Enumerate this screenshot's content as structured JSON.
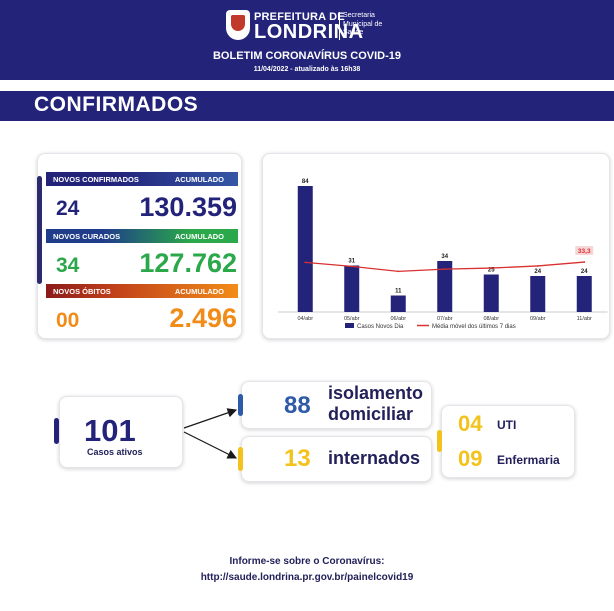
{
  "header": {
    "logo_top": "PREFEITURA DE",
    "logo_main": "LONDRINA",
    "logo_sub": "Secretaria Municipal de Saúde",
    "bulletin": "BOLETIM CORONAVÍRUS COVID-19",
    "date": "11/04/2022 - atualizado às 16h38"
  },
  "section_title": "CONFIRMADOS",
  "stats": {
    "confirmed": {
      "label": "NOVOS CONFIRMADOS",
      "acc_label": "ACUMULADO",
      "new": "24",
      "total": "130.359",
      "color": "#23237a"
    },
    "recovered": {
      "label": "NOVOS CURADOS",
      "acc_label": "ACUMULADO",
      "new": "34",
      "total": "127.762",
      "color": "#2aa84a"
    },
    "deaths": {
      "label": "NOVOS ÓBITOS",
      "acc_label": "ACUMULADO",
      "new": "00",
      "total": "2.496",
      "color": "#f28c18"
    }
  },
  "chart_data": {
    "type": "bar",
    "categories": [
      "04/abr",
      "05/abr",
      "06/abr",
      "07/abr",
      "08/abr",
      "09/abr",
      "11/abr"
    ],
    "series": [
      {
        "name": "Casos Novos Dia",
        "type": "bar",
        "values": [
          84,
          31,
          11,
          34,
          25,
          24,
          24
        ],
        "color": "#23237a"
      },
      {
        "name": "Média móvel dos últimos 7 dias",
        "type": "line",
        "values": [
          33.1,
          30.4,
          27.1,
          28.6,
          29.3,
          30.7,
          33.3
        ],
        "color": "#d93030"
      }
    ],
    "annotations": [
      "33,3"
    ],
    "ylim": [
      0,
      90
    ],
    "grid": false,
    "legend": "bottom"
  },
  "bottom": {
    "active": {
      "value": "101",
      "label": "Casos ativos"
    },
    "isolation": {
      "value": "88",
      "label_line1": "isolamento",
      "label_line2": "domiciliar"
    },
    "hospitalized": {
      "value": "13",
      "label": "internados"
    },
    "icu": {
      "value": "04",
      "label": "UTI"
    },
    "ward": {
      "value": "09",
      "label": "Enfermaria"
    }
  },
  "footer": {
    "line1": "Informe-se sobre o Coronavírus:",
    "line2": "http://saude.londrina.pr.gov.br/painelcovid19"
  },
  "colors": {
    "navy": "#23237a",
    "yellow": "#f3c21b",
    "blue_num": "#2e5aa8",
    "green_num": "#2aa84a",
    "orange_num": "#f28c18"
  }
}
